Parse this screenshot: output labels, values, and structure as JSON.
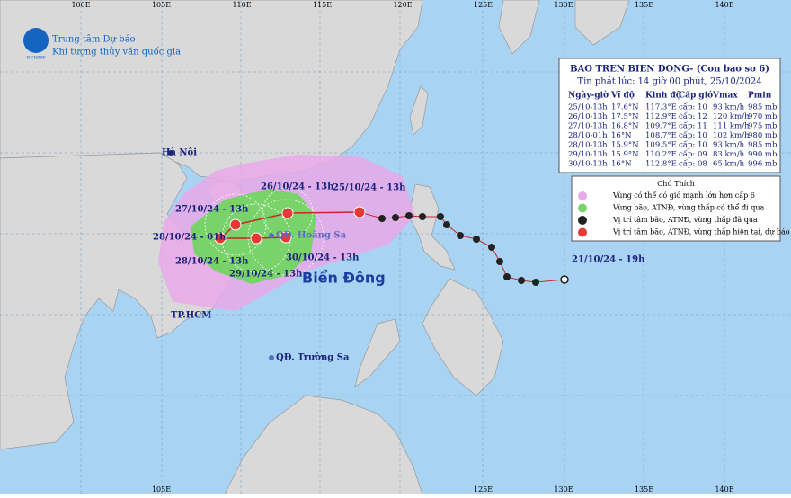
{
  "header": {
    "agency_line1": "Trung tâm Dự báo",
    "agency_line2": "Khí tượng thủy văn quốc gia",
    "logo_text": "NCHMF"
  },
  "lon_labels": [
    "100E",
    "105E",
    "110E",
    "115E",
    "120E",
    "125E",
    "130E",
    "135E",
    "140E"
  ],
  "bulletin": {
    "title": "BAO TREN BIEN DONG- (Con bao so 6)",
    "issued": "Tin phát lúc: 14 giờ 00 phút, 25/10/2024",
    "columns": [
      "Ngày-giờ",
      "Vĩ độ",
      "Kinh độ",
      "Cấp gió",
      "Vmax",
      "Pmin"
    ],
    "rows": [
      [
        "25/10-13h",
        "17.6°N",
        "117.3°E",
        "cấp: 10",
        "93 km/h",
        "985 mb"
      ],
      [
        "26/10-13h",
        "17.5°N",
        "112.9°E",
        "cấp: 12",
        "120 km/h",
        "970 mb"
      ],
      [
        "27/10-13h",
        "16.8°N",
        "109.7°E",
        "cấp: 11",
        "111 km/h",
        "975 mb"
      ],
      [
        "28/10-01h",
        "16°N",
        "108.7°E",
        "cấp: 10",
        "102 km/h",
        "980 mb"
      ],
      [
        "28/10-13h",
        "15.9°N",
        "109.5°E",
        "cấp: 10",
        "93 km/h",
        "985 mb"
      ],
      [
        "29/10-13h",
        "15.9°N",
        "110.2°E",
        "cấp: 09",
        "83 km/h",
        "990 mb"
      ],
      [
        "30/10-13h",
        "16°N",
        "112.8°E",
        "cấp: 08",
        "65 km/h",
        "996 mb"
      ]
    ]
  },
  "legend": {
    "title": "Chú Thích",
    "items": [
      "Vùng có thể có gió mạnh lớn hơn cấp 6",
      "Vùng bão, ATNĐ, vùng thấp có thể đi qua",
      "Vị trí tâm bão, ATNĐ, vùng thấp đã qua",
      "Vị trí tâm bão, ATNĐ, vùng thấp hiện tại, dự báo"
    ]
  },
  "places": [
    "Hà Nội",
    "TP.HCM",
    "QĐ. Hoàng Sa",
    "QĐ. Trường Sa"
  ],
  "sea_label": "Biển Đông",
  "track_labels": [
    "26/10/24 - 13h",
    "25/10/24 - 13h",
    "27/10/24 - 13h",
    "28/10/24 - 01h",
    "28/10/24 - 13h",
    "29/10/24 - 13h",
    "30/10/24 - 13h",
    "21/10/24 - 19h"
  ]
}
